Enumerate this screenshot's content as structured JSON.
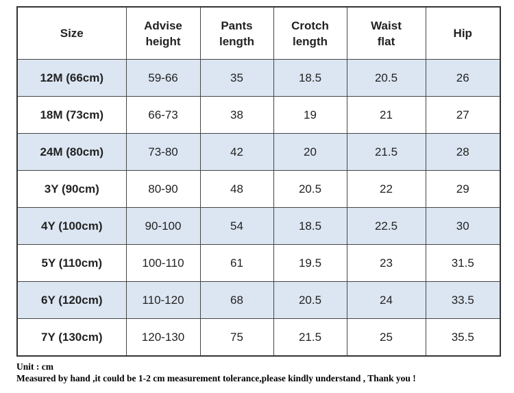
{
  "table": {
    "header": [
      [
        "Size"
      ],
      [
        "Advise",
        "height"
      ],
      [
        "Pants",
        "length"
      ],
      [
        "Crotch",
        "length"
      ],
      [
        "Waist",
        "flat"
      ],
      [
        "Hip"
      ]
    ],
    "rows": [
      [
        "12M (66cm)",
        "59-66",
        35,
        18.5,
        20.5,
        26
      ],
      [
        "18M (73cm)",
        "66-73",
        38,
        19,
        21,
        27
      ],
      [
        "24M (80cm)",
        "73-80",
        42,
        20,
        21.5,
        28
      ],
      [
        "3Y (90cm)",
        "80-90",
        48,
        20.5,
        22,
        29
      ],
      [
        "4Y (100cm)",
        "90-100",
        54,
        18.5,
        22.5,
        30
      ],
      [
        "5Y (110cm)",
        "100-110",
        61,
        19.5,
        23,
        31.5
      ],
      [
        "6Y (120cm)",
        "110-120",
        68,
        20.5,
        24,
        33.5
      ],
      [
        "7Y (130cm)",
        "120-130",
        75,
        21.5,
        25,
        35.5
      ]
    ]
  },
  "notes": [
    "Unit : cm",
    "Measured by hand ,it could be 1-2 cm measurement tolerance,please kindly understand , Thank you !"
  ]
}
